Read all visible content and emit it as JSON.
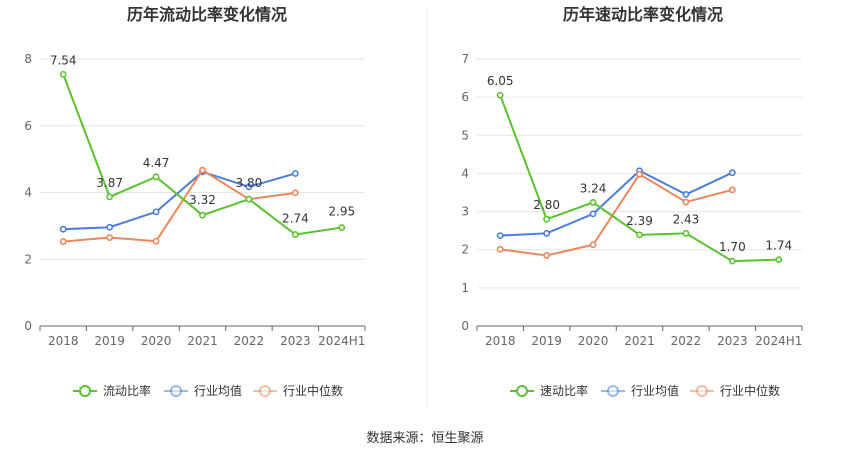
{
  "source": "数据来源：恒生聚源",
  "chart_data": [
    {
      "type": "line",
      "title": "历年流动比率变化情况",
      "categories": [
        "2018",
        "2019",
        "2020",
        "2021",
        "2022",
        "2023",
        "2024H1"
      ],
      "ylim": [
        0,
        8
      ],
      "yticks": [
        "0",
        "2",
        "4",
        "6",
        "8"
      ],
      "grid": true,
      "legend_position": "bottom",
      "series": [
        {
          "name": "流动比率",
          "color": "#5ac22e",
          "values": [
            7.54,
            3.87,
            4.47,
            3.32,
            3.8,
            2.74,
            2.95
          ],
          "labels": [
            "7.54",
            "3.87",
            "4.47",
            "3.32",
            "3.80",
            "2.74",
            "2.95"
          ]
        },
        {
          "name": "行业均值",
          "color": "#4a7de1",
          "values": [
            2.9,
            2.96,
            3.42,
            4.62,
            4.17,
            4.57,
            null
          ]
        },
        {
          "name": "行业中位数",
          "color": "#f0855a",
          "values": [
            2.53,
            2.65,
            2.54,
            4.67,
            3.8,
            3.99,
            null
          ]
        }
      ]
    },
    {
      "type": "line",
      "title": "历年速动比率变化情况",
      "categories": [
        "2018",
        "2019",
        "2020",
        "2021",
        "2022",
        "2023",
        "2024H1"
      ],
      "ylim": [
        0,
        7
      ],
      "yticks": [
        "0",
        "1",
        "2",
        "3",
        "4",
        "5",
        "6",
        "7"
      ],
      "grid": true,
      "legend_position": "bottom",
      "series": [
        {
          "name": "速动比率",
          "color": "#5ac22e",
          "values": [
            6.05,
            2.8,
            3.24,
            2.39,
            2.43,
            1.7,
            1.74
          ],
          "labels": [
            "6.05",
            "2.80",
            "3.24",
            "2.39",
            "2.43",
            "1.70",
            "1.74"
          ]
        },
        {
          "name": "行业均值",
          "color": "#4a7de1",
          "values": [
            2.37,
            2.43,
            2.94,
            4.07,
            3.45,
            4.02,
            null
          ]
        },
        {
          "name": "行业中位数",
          "color": "#f0855a",
          "values": [
            2.01,
            1.85,
            2.13,
            3.98,
            3.25,
            3.57,
            null
          ]
        }
      ]
    }
  ]
}
